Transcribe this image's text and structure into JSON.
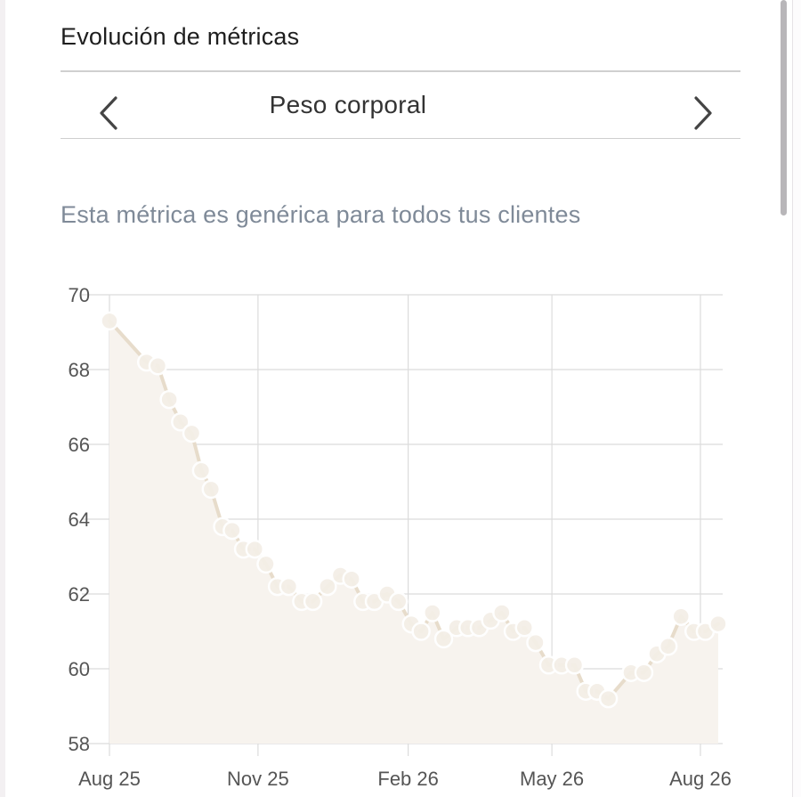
{
  "header": {
    "title": "Evolución de métricas"
  },
  "selector": {
    "metric_label": "Peso corporal",
    "prev_icon": "chevron-left-icon",
    "next_icon": "chevron-right-icon"
  },
  "info": {
    "note": "Esta métrica es genérica para todos tus clientes"
  },
  "colors": {
    "line": "#e7dccb",
    "point_fill": "#f4efe7",
    "area_fill": "#f7f3ee",
    "grid": "#dcdcdc",
    "axis_text": "#555555"
  },
  "chart_data": {
    "type": "area",
    "title": "",
    "xlabel": "",
    "ylabel": "",
    "ylim": [
      58,
      70
    ],
    "xlim": [
      "2025-08-25",
      "2026-09-01"
    ],
    "yticks": [
      58,
      60,
      62,
      64,
      66,
      68,
      70
    ],
    "xticks": [
      {
        "date": "2025-08-25",
        "label": "Aug 25"
      },
      {
        "date": "2025-11-25",
        "label": "Nov 25"
      },
      {
        "date": "2026-02-26",
        "label": "Feb 26"
      },
      {
        "date": "2026-05-26",
        "label": "May 26"
      },
      {
        "date": "2026-08-26",
        "label": "Aug 26"
      }
    ],
    "grid": true,
    "legend": "none",
    "series": [
      {
        "x": [
          "2025-08-25",
          "2025-09-17",
          "2025-09-24",
          "2025-10-01",
          "2025-10-08",
          "2025-10-15",
          "2025-10-21",
          "2025-10-27",
          "2025-11-03",
          "2025-11-09",
          "2025-11-16",
          "2025-11-23",
          "2025-11-30",
          "2025-12-07",
          "2025-12-14",
          "2025-12-22",
          "2025-12-29",
          "2026-01-07",
          "2026-01-15",
          "2026-01-22",
          "2026-01-29",
          "2026-02-05",
          "2026-02-13",
          "2026-02-20",
          "2026-02-28",
          "2026-03-06",
          "2026-03-13",
          "2026-03-20",
          "2026-03-28",
          "2026-04-04",
          "2026-04-11",
          "2026-04-18",
          "2026-04-25",
          "2026-05-02",
          "2026-05-09",
          "2026-05-16",
          "2026-05-24",
          "2026-06-01",
          "2026-06-09",
          "2026-06-16",
          "2026-06-23",
          "2026-06-30",
          "2026-07-14",
          "2026-07-22",
          "2026-07-30",
          "2026-08-06",
          "2026-08-14",
          "2026-08-22",
          "2026-08-29",
          "2026-09-06"
        ],
        "values": [
          69.3,
          68.2,
          68.1,
          67.2,
          66.6,
          66.3,
          65.3,
          64.8,
          63.8,
          63.7,
          63.2,
          63.2,
          62.8,
          62.2,
          62.2,
          61.8,
          61.8,
          62.2,
          62.5,
          62.4,
          61.8,
          61.8,
          62.0,
          61.8,
          61.2,
          61.0,
          61.5,
          60.8,
          61.1,
          61.1,
          61.1,
          61.3,
          61.5,
          61.0,
          61.1,
          60.7,
          60.1,
          60.1,
          60.1,
          59.4,
          59.4,
          59.2,
          59.9,
          59.9,
          60.4,
          60.6,
          61.4,
          61.0,
          61.0,
          61.2
        ]
      }
    ]
  }
}
